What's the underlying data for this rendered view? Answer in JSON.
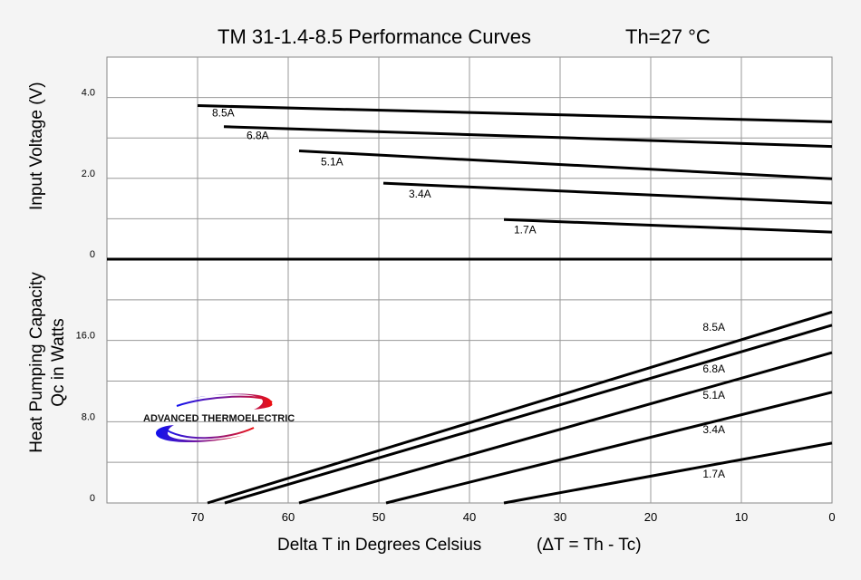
{
  "chart_data": {
    "type": "line",
    "title": "TM 31-1.4-8.5 Performance Curves",
    "subtitle": "Th=27 °C",
    "xlabel": "Delta T in Degrees Celsius",
    "xlabel_note": "(ΔT = Th - Tc)",
    "xlim": [
      80,
      0
    ],
    "x_ticks": [
      "70",
      "60",
      "50",
      "40",
      "30",
      "20",
      "10",
      "0"
    ],
    "grid": true,
    "logo_text": "ADVANCED THERMOELECTRIC",
    "panels": [
      {
        "name": "voltage",
        "ylabel": "Input Voltage (V)",
        "ylim": [
          0,
          5
        ],
        "y_ticks": [
          "4.0",
          "2.0",
          "0"
        ],
        "series": [
          {
            "name": "8.5A",
            "x": [
              70,
              0
            ],
            "y": [
              3.8,
              3.4
            ]
          },
          {
            "name": "6.8A",
            "x": [
              67.1,
              0
            ],
            "y": [
              3.28,
              2.79
            ]
          },
          {
            "name": "5.1A",
            "x": [
              58.8,
              0
            ],
            "y": [
              2.68,
              1.99
            ]
          },
          {
            "name": "3.4A",
            "x": [
              49.5,
              0
            ],
            "y": [
              1.88,
              1.39
            ]
          },
          {
            "name": "1.7A",
            "x": [
              36.2,
              0
            ],
            "y": [
              0.98,
              0.67
            ]
          }
        ]
      },
      {
        "name": "heat-pumping",
        "ylabel": "Heat Pumping Capacity",
        "ylabel2": "Qc in Watts",
        "ylim": [
          0,
          24
        ],
        "y_ticks": [
          "16.0",
          "8.0",
          "0"
        ],
        "series": [
          {
            "name": "8.5A",
            "x": [
              68.9,
              0
            ],
            "y": [
              0,
              18.8
            ]
          },
          {
            "name": "6.8A",
            "x": [
              67.0,
              0
            ],
            "y": [
              0,
              17.5
            ]
          },
          {
            "name": "5.1A",
            "x": [
              58.8,
              0
            ],
            "y": [
              0,
              14.8
            ]
          },
          {
            "name": "3.4A",
            "x": [
              49.2,
              0
            ],
            "y": [
              0,
              10.9
            ]
          },
          {
            "name": "1.7A",
            "x": [
              36.2,
              0
            ],
            "y": [
              0,
              5.9
            ]
          }
        ]
      }
    ]
  }
}
